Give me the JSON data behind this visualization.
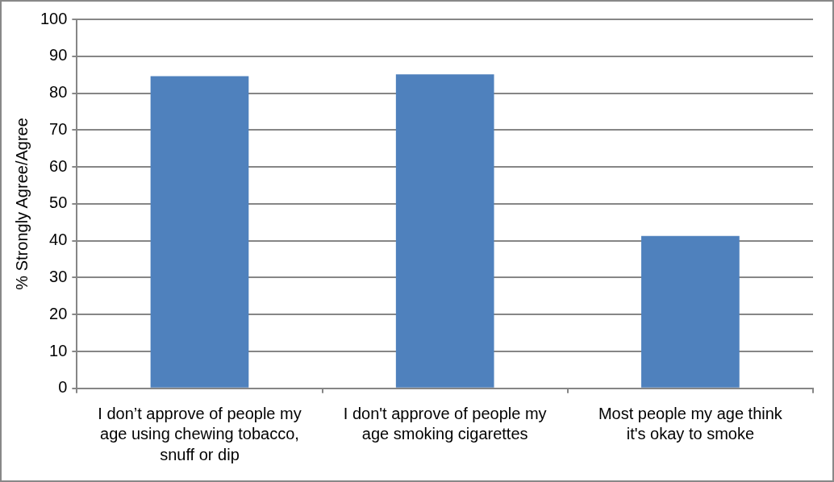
{
  "chart_data": {
    "type": "bar",
    "ylabel": "% Strongly Agree/Agree",
    "categories": [
      "I don’t approve of people my age using chewing tobacco, snuff or dip",
      "I don't approve of people my age smoking cigarettes",
      "Most people my age think it's okay to smoke"
    ],
    "values": [
      84.6,
      85.1,
      41.3
    ],
    "color": "#4f81bd",
    "ylim": [
      0,
      100
    ],
    "yticks": [
      0,
      10,
      20,
      30,
      40,
      50,
      60,
      70,
      80,
      90,
      100
    ],
    "grid": "y",
    "legend": false
  }
}
